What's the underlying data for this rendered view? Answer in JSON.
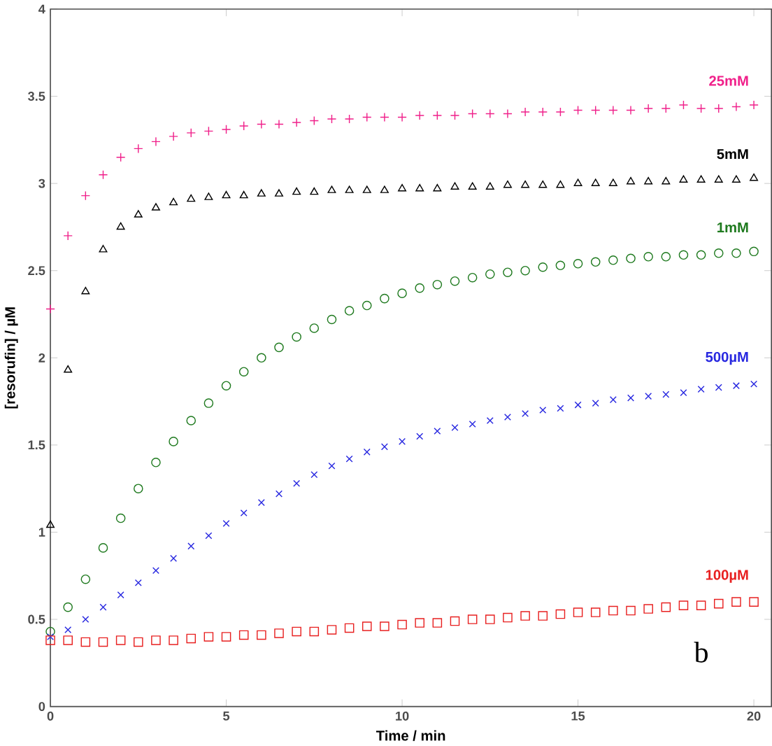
{
  "chart_data": {
    "type": "scatter",
    "xlabel": "Time / min",
    "ylabel": "[resorufin] / µM",
    "x": [
      0,
      0.5,
      1,
      1.5,
      2,
      2.5,
      3,
      3.5,
      4,
      4.5,
      5,
      5.5,
      6,
      6.5,
      7,
      7.5,
      8,
      8.5,
      9,
      9.5,
      10,
      10.5,
      11,
      11.5,
      12,
      12.5,
      13,
      13.5,
      14,
      14.5,
      15,
      15.5,
      16,
      16.5,
      17,
      17.5,
      18,
      18.5,
      19,
      19.5,
      20
    ],
    "series": [
      {
        "name": "25mM",
        "color": "#f0208a",
        "marker": "plus",
        "values": [
          2.28,
          2.7,
          2.93,
          3.05,
          3.15,
          3.2,
          3.24,
          3.27,
          3.29,
          3.3,
          3.31,
          3.33,
          3.34,
          3.34,
          3.35,
          3.36,
          3.37,
          3.37,
          3.38,
          3.38,
          3.38,
          3.39,
          3.39,
          3.39,
          3.4,
          3.4,
          3.4,
          3.41,
          3.41,
          3.41,
          3.42,
          3.42,
          3.42,
          3.42,
          3.43,
          3.43,
          3.45,
          3.43,
          3.43,
          3.44,
          3.45
        ]
      },
      {
        "name": "5mM",
        "color": "#000000",
        "marker": "triangle",
        "values": [
          1.04,
          1.93,
          2.38,
          2.62,
          2.75,
          2.82,
          2.86,
          2.89,
          2.91,
          2.92,
          2.93,
          2.93,
          2.94,
          2.94,
          2.95,
          2.95,
          2.96,
          2.96,
          2.96,
          2.96,
          2.97,
          2.97,
          2.97,
          2.98,
          2.98,
          2.98,
          2.99,
          2.99,
          2.99,
          2.99,
          3.0,
          3.0,
          3.0,
          3.01,
          3.01,
          3.01,
          3.02,
          3.02,
          3.02,
          3.02,
          3.03
        ]
      },
      {
        "name": "1mM",
        "color": "#1f7a1f",
        "marker": "circle",
        "values": [
          0.43,
          0.57,
          0.73,
          0.91,
          1.08,
          1.25,
          1.4,
          1.52,
          1.64,
          1.74,
          1.84,
          1.92,
          2.0,
          2.06,
          2.12,
          2.17,
          2.22,
          2.27,
          2.3,
          2.34,
          2.37,
          2.4,
          2.42,
          2.44,
          2.46,
          2.48,
          2.49,
          2.5,
          2.52,
          2.53,
          2.54,
          2.55,
          2.56,
          2.57,
          2.58,
          2.58,
          2.59,
          2.59,
          2.6,
          2.6,
          2.61
        ]
      },
      {
        "name": "500µM",
        "color": "#2828e0",
        "marker": "cross",
        "values": [
          0.4,
          0.44,
          0.5,
          0.57,
          0.64,
          0.71,
          0.78,
          0.85,
          0.92,
          0.98,
          1.05,
          1.11,
          1.17,
          1.22,
          1.28,
          1.33,
          1.38,
          1.42,
          1.46,
          1.49,
          1.52,
          1.55,
          1.58,
          1.6,
          1.62,
          1.64,
          1.66,
          1.68,
          1.7,
          1.71,
          1.73,
          1.74,
          1.76,
          1.77,
          1.78,
          1.79,
          1.8,
          1.82,
          1.83,
          1.84,
          1.85
        ]
      },
      {
        "name": "100µM",
        "color": "#e82020",
        "marker": "square",
        "values": [
          0.38,
          0.38,
          0.37,
          0.37,
          0.38,
          0.37,
          0.38,
          0.38,
          0.39,
          0.4,
          0.4,
          0.41,
          0.41,
          0.42,
          0.43,
          0.43,
          0.44,
          0.45,
          0.46,
          0.46,
          0.47,
          0.48,
          0.48,
          0.49,
          0.5,
          0.5,
          0.51,
          0.52,
          0.52,
          0.53,
          0.54,
          0.54,
          0.55,
          0.55,
          0.56,
          0.57,
          0.58,
          0.58,
          0.59,
          0.6,
          0.6
        ]
      }
    ],
    "xlim": [
      0,
      20.5
    ],
    "xticks": [
      0,
      5,
      10,
      15,
      20
    ],
    "ylim": [
      0,
      4
    ],
    "yticks": [
      0,
      0.5,
      1,
      1.5,
      2,
      2.5,
      3,
      3.5,
      4
    ],
    "grid": false,
    "legend": false,
    "annotations": [
      "b"
    ]
  }
}
